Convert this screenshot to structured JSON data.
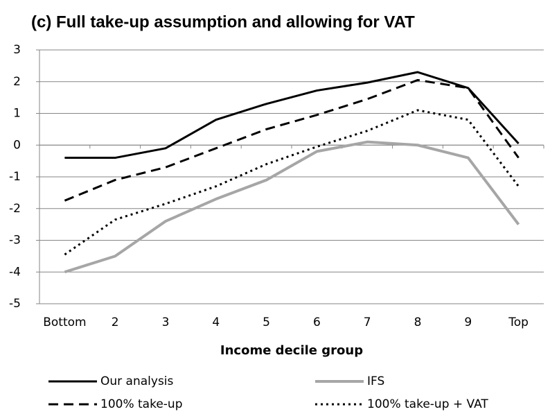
{
  "chart_data": {
    "type": "line",
    "title": "(c)  Full take-up assumption and allowing for VAT",
    "x_label": "Income decile group",
    "categories": [
      "Bottom",
      "2",
      "3",
      "4",
      "5",
      "6",
      "7",
      "8",
      "9",
      "Top"
    ],
    "series": [
      {
        "name": "Our analysis",
        "color": "#000000",
        "dash": "solid",
        "width": 3,
        "values": [
          -0.4,
          -0.4,
          -0.1,
          0.8,
          1.3,
          1.72,
          1.97,
          2.3,
          1.8,
          0.05
        ]
      },
      {
        "name": "IFS",
        "color": "#a6a6a6",
        "dash": "solid",
        "width": 4,
        "values": [
          -4,
          -3.5,
          -2.4,
          -1.7,
          -1.1,
          -0.2,
          0.1,
          0,
          -0.4,
          -2.5
        ]
      },
      {
        "name": "100% take-up",
        "color": "#000000",
        "dash": "dashed",
        "width": 3,
        "values": [
          -1.75,
          -1.1,
          -0.7,
          -0.1,
          0.5,
          0.95,
          1.45,
          2.05,
          1.8,
          -0.4
        ]
      },
      {
        "name": "100% take-up + VAT",
        "color": "#000000",
        "dash": "dotted",
        "width": 3,
        "values": [
          -3.45,
          -2.35,
          -1.85,
          -1.3,
          -0.6,
          -0.05,
          0.45,
          1.1,
          0.8,
          -1.3
        ]
      }
    ],
    "ylim": [
      -5,
      3
    ],
    "yticks": [
      -5,
      -4,
      -3,
      -2,
      -1,
      0,
      1,
      2,
      3
    ],
    "grid": true,
    "legend": "bottom"
  }
}
